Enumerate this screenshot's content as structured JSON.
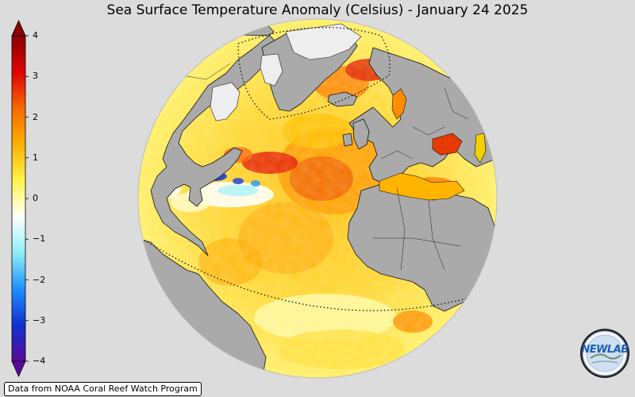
{
  "title": "Sea Surface Temperature Anomaly (Celsius) - January 24 2025",
  "colorbar": {
    "ticks": [
      {
        "value": 4,
        "label": "4"
      },
      {
        "value": 3,
        "label": "3"
      },
      {
        "value": 2,
        "label": "2"
      },
      {
        "value": 1,
        "label": "1"
      },
      {
        "value": 0,
        "label": "0"
      },
      {
        "value": -1,
        "label": "−1"
      },
      {
        "value": -2,
        "label": "−2"
      },
      {
        "value": -3,
        "label": "−3"
      },
      {
        "value": -4,
        "label": "−4"
      }
    ],
    "range": [
      -4,
      4
    ],
    "colors": [
      "#5a0a9a",
      "#1030d0",
      "#1e90ff",
      "#8feef5",
      "#ffffff",
      "#fff34a",
      "#ffb000",
      "#f56a00",
      "#e00000",
      "#8b0000"
    ]
  },
  "map": {
    "land_color": "#aaaaaa",
    "sea_ice_color": "#eeeeee",
    "background_color": "#dcdcdc"
  },
  "credit": "Data from NOAA Coral Reef Watch Program",
  "logo": {
    "text": "NEWLAB"
  }
}
